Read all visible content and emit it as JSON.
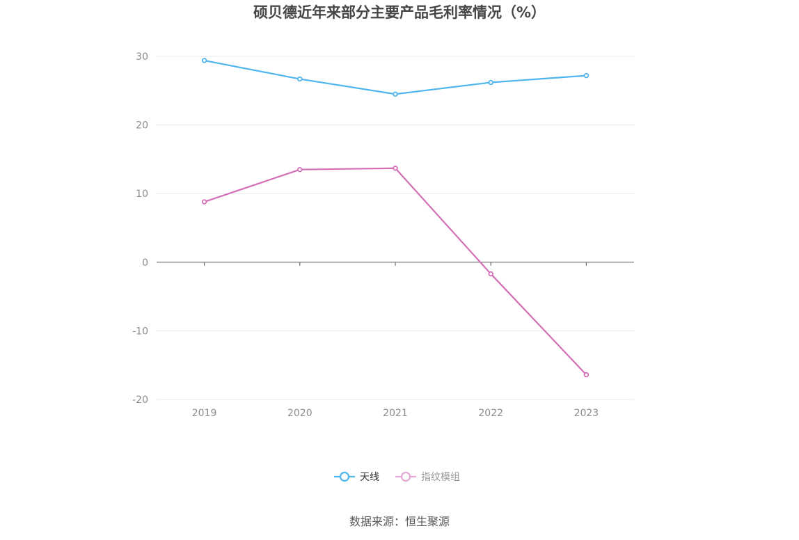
{
  "chart_data": {
    "type": "line",
    "title": "硕贝德近年来部分主要产品毛利率情况（%）",
    "categories": [
      "2019",
      "2020",
      "2021",
      "2022",
      "2023"
    ],
    "series": [
      {
        "name": "天线",
        "color": "#4fb6ec",
        "values": [
          29.4,
          26.7,
          24.5,
          26.2,
          27.2
        ]
      },
      {
        "name": "指纹模组",
        "color": "#d46fb5",
        "values": [
          8.8,
          13.5,
          13.7,
          -1.7,
          -16.4
        ]
      }
    ],
    "y_ticks": [
      30,
      20,
      10,
      0,
      -10,
      -20
    ],
    "ylim": [
      -20,
      30
    ],
    "grid": true,
    "legend_position": "bottom"
  },
  "legend": {
    "items": [
      {
        "label": "天线",
        "color": "#4fb6ec",
        "text_color": "#333333"
      },
      {
        "label": "指纹模组",
        "color": "#e8a6d4",
        "text_color": "#999999"
      }
    ]
  },
  "footer": {
    "source": "数据来源：恒生聚源"
  }
}
